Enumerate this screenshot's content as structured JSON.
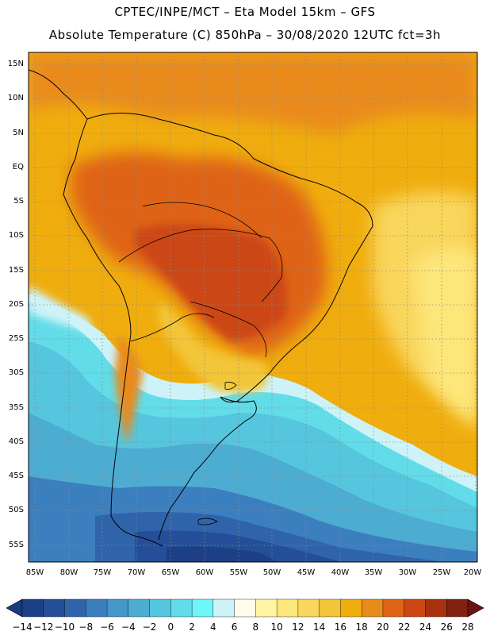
{
  "header": {
    "line1": "CPTEC/INPE/MCT –  Eta Model 15km – GFS",
    "line2": "Absolute Temperature (C) 850hPa – 30/08/2020 12UTC fct=3h"
  },
  "map": {
    "lat_labels": [
      "15N",
      "10N",
      "5N",
      "EQ",
      "5S",
      "10S",
      "15S",
      "20S",
      "25S",
      "30S",
      "35S",
      "40S",
      "45S",
      "50S",
      "55S"
    ],
    "lon_labels": [
      "85W",
      "80W",
      "75W",
      "70W",
      "65W",
      "60W",
      "55W",
      "50W",
      "45W",
      "40W",
      "35W",
      "30W",
      "25W",
      "20W"
    ]
  },
  "colorbar": {
    "labels": [
      "-14",
      "-12",
      "-10",
      "-8",
      "-6",
      "-4",
      "-2",
      "0",
      "2",
      "4",
      "6",
      "8",
      "10",
      "12",
      "14",
      "16",
      "18",
      "20",
      "22",
      "24",
      "26",
      "28"
    ],
    "colors": [
      "#1d3f86",
      "#244f98",
      "#2f64ab",
      "#3b7fbf",
      "#4497c9",
      "#4dacd2",
      "#55c6de",
      "#62dce9",
      "#6ff6f8",
      "#cdf3f8",
      "#fffde9",
      "#fff6a4",
      "#fde67a",
      "#f9d65c",
      "#f3c538",
      "#f0ad0e",
      "#e98b1c",
      "#df6417",
      "#cc4712",
      "#a8320f",
      "#82200f"
    ]
  }
}
